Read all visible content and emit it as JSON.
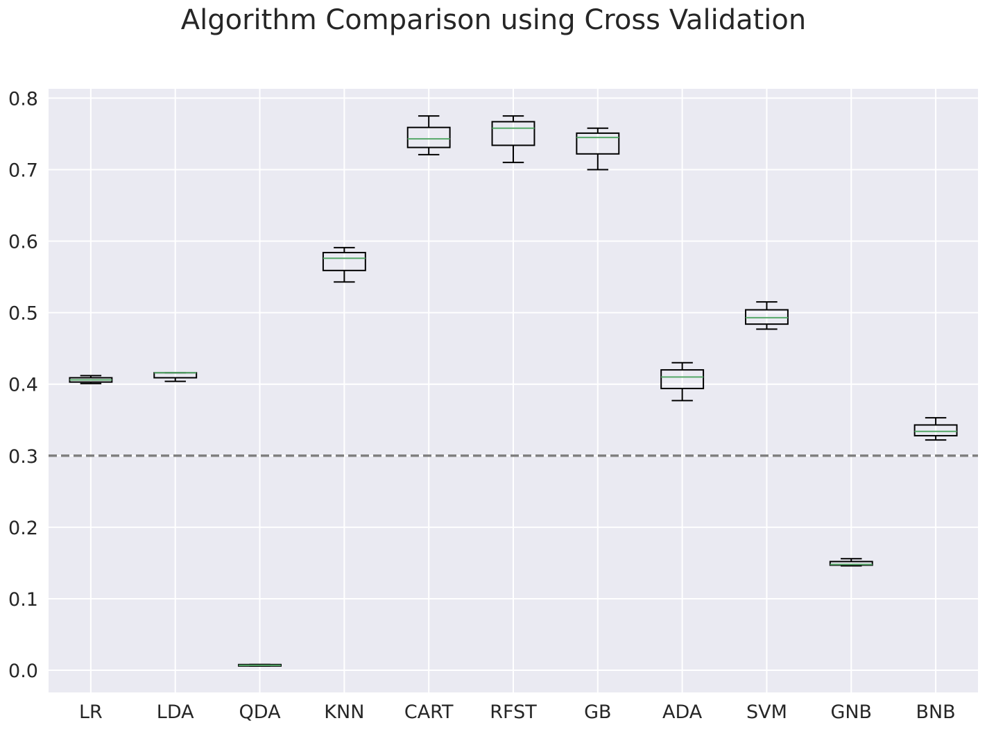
{
  "chart_data": {
    "type": "box",
    "title": "Algorithm Comparison using Cross Validation",
    "xlabel": "",
    "ylabel": "",
    "categories": [
      "LR",
      "LDA",
      "QDA",
      "KNN",
      "CART",
      "RFST",
      "GB",
      "ADA",
      "SVM",
      "GNB",
      "BNB"
    ],
    "boxes": [
      {
        "min": 0.401,
        "q1": 0.403,
        "median": 0.406,
        "q3": 0.409,
        "max": 0.412
      },
      {
        "min": 0.404,
        "q1": 0.409,
        "median": 0.416,
        "q3": 0.416,
        "max": 0.416
      },
      {
        "min": 0.006,
        "q1": 0.006,
        "median": 0.007,
        "q3": 0.008,
        "max": 0.008
      },
      {
        "min": 0.543,
        "q1": 0.559,
        "median": 0.576,
        "q3": 0.584,
        "max": 0.591
      },
      {
        "min": 0.721,
        "q1": 0.731,
        "median": 0.743,
        "q3": 0.759,
        "max": 0.775
      },
      {
        "min": 0.71,
        "q1": 0.734,
        "median": 0.758,
        "q3": 0.767,
        "max": 0.775
      },
      {
        "min": 0.7,
        "q1": 0.722,
        "median": 0.745,
        "q3": 0.751,
        "max": 0.758
      },
      {
        "min": 0.377,
        "q1": 0.394,
        "median": 0.41,
        "q3": 0.42,
        "max": 0.43
      },
      {
        "min": 0.477,
        "q1": 0.484,
        "median": 0.493,
        "q3": 0.504,
        "max": 0.515
      },
      {
        "min": 0.146,
        "q1": 0.147,
        "median": 0.148,
        "q3": 0.152,
        "max": 0.156
      },
      {
        "min": 0.322,
        "q1": 0.328,
        "median": 0.334,
        "q3": 0.343,
        "max": 0.353
      }
    ],
    "reference_line": {
      "y": 0.3,
      "style": "dashed",
      "color": "#808080"
    },
    "ylim": [
      -0.031,
      0.813
    ],
    "yticks": [
      0.0,
      0.1,
      0.2,
      0.3,
      0.4,
      0.5,
      0.6,
      0.7,
      0.8
    ],
    "ytick_labels": [
      "0.0",
      "0.1",
      "0.2",
      "0.3",
      "0.4",
      "0.5",
      "0.6",
      "0.7",
      "0.8"
    ],
    "grid": true,
    "colors": {
      "background": "#eaeaf2",
      "grid": "#ffffff",
      "box": "#000000",
      "median": "#55a868"
    }
  }
}
